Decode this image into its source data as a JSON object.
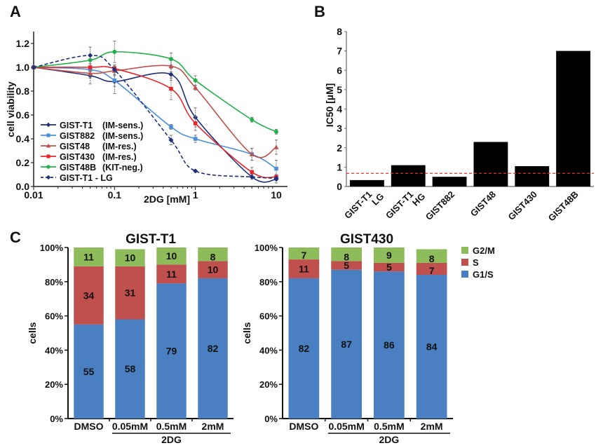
{
  "panels": {
    "A": "A",
    "B": "B",
    "C": "C"
  },
  "chart_data": [
    {
      "id": "A",
      "type": "line",
      "title": "",
      "xlabel": "2DG [mM]",
      "ylabel": "cell viability",
      "xscale": "log",
      "xlim": [
        0.01,
        10
      ],
      "ylim": [
        0.0,
        1.3
      ],
      "xticks": [
        "0.01",
        "0.1",
        "1",
        "10"
      ],
      "xtick_values": [
        0.01,
        0.1,
        1,
        10
      ],
      "yticks": [
        "0.0",
        "0.2",
        "0.4",
        "0.6",
        "0.8",
        "1.0",
        "1.2"
      ],
      "ytick_values": [
        0,
        0.2,
        0.4,
        0.6,
        0.8,
        1.0,
        1.2
      ],
      "grid": false,
      "legend_position": "bottom-left",
      "x": [
        0.01,
        0.05,
        0.1,
        0.5,
        1,
        5,
        10
      ],
      "series": [
        {
          "name": "GIST-T1",
          "note": "(IM-sens.)",
          "color": "#1f2f7a",
          "marker": "diamond",
          "dashed": false,
          "values": [
            1.0,
            0.93,
            0.88,
            0.94,
            0.58,
            0.08,
            0.06
          ],
          "errors": [
            0,
            0.07,
            0.1,
            0.05,
            0.08,
            0.02,
            0.03
          ]
        },
        {
          "name": "GIST882",
          "note": "(IM-sens.)",
          "color": "#4a8fd6",
          "marker": "square",
          "dashed": false,
          "values": [
            1.0,
            0.98,
            0.89,
            0.5,
            0.4,
            0.27,
            0.15
          ],
          "errors": [
            0,
            0.05,
            0.05,
            0.02,
            0.03,
            0.05,
            0.07
          ]
        },
        {
          "name": "GIST48",
          "note": "(IM-res.)",
          "color": "#c0504d",
          "marker": "triangle",
          "dashed": false,
          "values": [
            1.0,
            0.95,
            0.97,
            1.01,
            0.83,
            0.27,
            0.33
          ],
          "errors": [
            0,
            0.04,
            0.04,
            0.05,
            0.02,
            0.05,
            0.06
          ]
        },
        {
          "name": "GIST430",
          "note": "(IM-res.)",
          "color": "#e8262a",
          "marker": "square",
          "dashed": false,
          "values": [
            1.0,
            1.0,
            0.99,
            0.82,
            0.53,
            0.12,
            0.08
          ],
          "errors": [
            0,
            0.03,
            0.03,
            0.09,
            0.06,
            0.04,
            0.02
          ]
        },
        {
          "name": "GIST48B",
          "note": "(KIT-neg.)",
          "color": "#22b04b",
          "marker": "circle",
          "dashed": false,
          "values": [
            1.0,
            1.06,
            1.13,
            1.07,
            0.89,
            0.56,
            0.46
          ],
          "errors": [
            0,
            0,
            0.09,
            0.05,
            0.04,
            0.02,
            0.02
          ]
        },
        {
          "name": "GIST-T1 - LG",
          "note": "",
          "color": "#1f2f7a",
          "marker": "diamond",
          "dashed": true,
          "values": [
            1.0,
            1.1,
            0.98,
            0.39,
            0.13,
            0.08,
            0.07
          ],
          "errors": [
            0,
            0.07,
            0.04,
            0.04,
            0.01,
            0.01,
            0.01
          ]
        }
      ]
    },
    {
      "id": "B",
      "type": "bar",
      "title": "",
      "xlabel": "",
      "ylabel": "IC50 [µM]",
      "ylim": [
        0,
        8
      ],
      "yticks": [
        "0",
        "1",
        "2",
        "3",
        "4",
        "5",
        "6",
        "7",
        "8"
      ],
      "ytick_values": [
        0,
        1,
        2,
        3,
        4,
        5,
        6,
        7,
        8
      ],
      "grid": false,
      "categories": [
        [
          "GIST-T1",
          "LG"
        ],
        [
          "GIST-T1",
          "HG"
        ],
        [
          "GIST882"
        ],
        [
          "GIST48"
        ],
        [
          "GIST430"
        ],
        [
          "GIST48B"
        ]
      ],
      "values": [
        0.33,
        1.1,
        0.5,
        2.3,
        1.05,
        7.0
      ],
      "bar_color": "#000000",
      "reference_line": {
        "value": 0.68,
        "color": "#e53030",
        "style": "dashed"
      }
    },
    {
      "id": "C1",
      "type": "bar",
      "stacked": true,
      "title": "GIST-T1",
      "xlabel": "2DG",
      "ylabel": "cells",
      "ylim": [
        0,
        100
      ],
      "yticks": [
        "0%",
        "20%",
        "40%",
        "60%",
        "80%",
        "100%"
      ],
      "ytick_values": [
        0,
        20,
        40,
        60,
        80,
        100
      ],
      "categories": [
        "DMSO",
        "0.05mM",
        "0.5mM",
        "2mM"
      ],
      "group_label": {
        "text": "2DG",
        "spans": [
          "0.05mM",
          "0.5mM",
          "2mM"
        ]
      },
      "series": [
        {
          "name": "G1/S",
          "color": "#4a7fc1",
          "values": [
            55,
            58,
            79,
            82
          ]
        },
        {
          "name": "S",
          "color": "#c0504d",
          "values": [
            34,
            31,
            11,
            10
          ]
        },
        {
          "name": "G2/M",
          "color": "#8fbc5a",
          "values": [
            11,
            10,
            10,
            8
          ]
        }
      ]
    },
    {
      "id": "C2",
      "type": "bar",
      "stacked": true,
      "title": "GIST430",
      "xlabel": "2DG",
      "ylabel": "cells",
      "ylim": [
        0,
        100
      ],
      "yticks": [
        "0%",
        "20%",
        "40%",
        "60%",
        "80%",
        "100%"
      ],
      "ytick_values": [
        0,
        20,
        40,
        60,
        80,
        100
      ],
      "categories": [
        "DMSO",
        "0.05mM",
        "0.5mM",
        "2mM"
      ],
      "group_label": {
        "text": "2DG",
        "spans": [
          "0.05mM",
          "0.5mM",
          "2mM"
        ]
      },
      "series": [
        {
          "name": "G1/S",
          "color": "#4a7fc1",
          "values": [
            82,
            87,
            86,
            84
          ]
        },
        {
          "name": "S",
          "color": "#c0504d",
          "values": [
            11,
            5,
            5,
            7
          ]
        },
        {
          "name": "G2/M",
          "color": "#8fbc5a",
          "values": [
            7,
            8,
            9,
            8
          ]
        }
      ],
      "legend": [
        {
          "label": "G2/M",
          "color": "#8fbc5a"
        },
        {
          "label": "S",
          "color": "#c0504d"
        },
        {
          "label": "G1/S",
          "color": "#4a7fc1"
        }
      ],
      "legend_position": "right"
    }
  ]
}
